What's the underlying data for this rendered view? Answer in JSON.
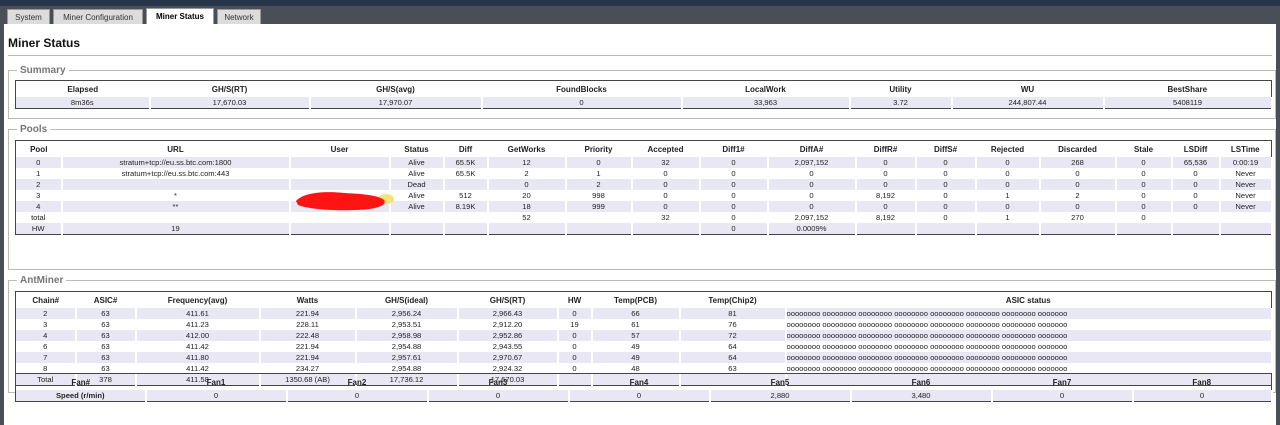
{
  "tabs": [
    "System",
    "Miner Configuration",
    "Miner Status",
    "Network"
  ],
  "page_title": "Miner Status",
  "summary": {
    "legend": "Summary",
    "headers": [
      "Elapsed",
      "GH/S(RT)",
      "GH/S(avg)",
      "FoundBlocks",
      "LocalWork",
      "Utility",
      "WU",
      "BestShare"
    ],
    "row": [
      "8m36s",
      "17,670.03",
      "17,970.07",
      "0",
      "33,963",
      "3.72",
      "244,807.44",
      "5408119"
    ]
  },
  "pools": {
    "legend": "Pools",
    "headers": [
      "Pool",
      "URL",
      "User",
      "Status",
      "Diff",
      "GetWorks",
      "Priority",
      "Accepted",
      "Diff1#",
      "DiffA#",
      "DiffR#",
      "DiffS#",
      "Rejected",
      "Discarded",
      "Stale",
      "LSDiff",
      "LSTime"
    ],
    "rows": [
      [
        "0",
        "stratum+tcp://eu.ss.btc.com:1800",
        "",
        "Alive",
        "65.5K",
        "12",
        "0",
        "32",
        "0",
        "2,097,152",
        "0",
        "0",
        "0",
        "268",
        "0",
        "65,536",
        "0:00:19"
      ],
      [
        "1",
        "stratum+tcp://eu.ss.btc.com:443",
        "",
        "Alive",
        "65.5K",
        "2",
        "1",
        "0",
        "0",
        "0",
        "0",
        "0",
        "0",
        "0",
        "0",
        "0",
        "Never"
      ],
      [
        "2",
        "",
        "",
        "Dead",
        "",
        "0",
        "2",
        "0",
        "0",
        "0",
        "0",
        "0",
        "0",
        "0",
        "0",
        "0",
        "Never"
      ],
      [
        "3",
        "*",
        "*",
        "Alive",
        "512",
        "20",
        "998",
        "0",
        "0",
        "0",
        "8,192",
        "0",
        "1",
        "2",
        "0",
        "0",
        "Never"
      ],
      [
        "4",
        "**",
        "*",
        "Alive",
        "8.19K",
        "18",
        "999",
        "0",
        "0",
        "0",
        "0",
        "0",
        "0",
        "0",
        "0",
        "0",
        "Never"
      ],
      [
        "total",
        "",
        "",
        "",
        "",
        "52",
        "",
        "32",
        "0",
        "2,097,152",
        "8,192",
        "0",
        "1",
        "270",
        "0",
        "",
        ""
      ],
      [
        "HW",
        "19",
        "",
        "",
        "",
        "",
        "",
        "",
        "0",
        "0.0009%",
        "",
        "",
        "",
        "",
        "",
        "",
        ""
      ]
    ]
  },
  "antminer": {
    "legend": "AntMiner",
    "headers": [
      "Chain#",
      "ASIC#",
      "Frequency(avg)",
      "Watts",
      "GH/S(ideal)",
      "GH/S(RT)",
      "HW",
      "Temp(PCB)",
      "Temp(Chip2)",
      "ASIC status"
    ],
    "rows": [
      [
        "2",
        "63",
        "411.61",
        "221.94",
        "2,956.24",
        "2,966.43",
        "0",
        "66",
        "81",
        "oooooooo oooooooo oooooooo oooooooo oooooooo oooooooo oooooooo ooooooo"
      ],
      [
        "3",
        "63",
        "411.23",
        "228.11",
        "2,953.51",
        "2,912.20",
        "19",
        "61",
        "76",
        "oooooooo oooooooo oooooooo oooooooo oooooooo oooooooo oooooooo ooooooo"
      ],
      [
        "4",
        "63",
        "412.00",
        "222.48",
        "2,958.98",
        "2,952.86",
        "0",
        "57",
        "72",
        "oooooooo oooooooo oooooooo oooooooo oooooooo oooooooo oooooooo ooooooo"
      ],
      [
        "6",
        "63",
        "411.42",
        "221.94",
        "2,954.88",
        "2,943.55",
        "0",
        "49",
        "64",
        "oooooooo oooooooo oooooooo oooooooo oooooooo oooooooo oooooooo ooooooo"
      ],
      [
        "7",
        "63",
        "411.80",
        "221.94",
        "2,957.61",
        "2,970.67",
        "0",
        "49",
        "64",
        "oooooooo oooooooo oooooooo oooooooo oooooooo oooooooo oooooooo ooooooo"
      ],
      [
        "8",
        "63",
        "411.42",
        "234.27",
        "2,954.88",
        "2,924.32",
        "0",
        "48",
        "63",
        "oooooooo oooooooo oooooooo oooooooo oooooooo oooooooo oooooooo ooooooo"
      ],
      [
        "Total",
        "378",
        "411.58",
        "1350.68 (AB)",
        "17,736.12",
        "17,670.03",
        "",
        "",
        "",
        ""
      ]
    ]
  },
  "fans": {
    "headers": [
      "Fan#",
      "Fan1",
      "Fan2",
      "Fan3",
      "Fan4",
      "Fan5",
      "Fan6",
      "Fan7",
      "Fan8"
    ],
    "row": [
      "Speed (r/min)",
      "0",
      "0",
      "0",
      "0",
      "2,880",
      "3,480",
      "0",
      "0"
    ]
  },
  "colors": {
    "row_stripe": "#e8e8f4",
    "redaction": "#ff1414"
  }
}
